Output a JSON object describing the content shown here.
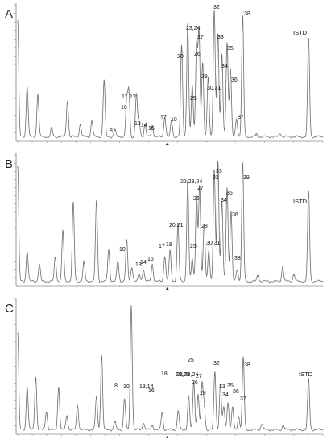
{
  "chart_data": [
    {
      "type": "line",
      "panel_label": "A",
      "internal_standard": "ISTD",
      "annotations": [
        {
          "label": "8",
          "x": 0.318
        },
        {
          "label": "10",
          "x": 0.357
        },
        {
          "label": "11",
          "x": 0.364
        },
        {
          "label": "12",
          "x": 0.389
        },
        {
          "label": "13",
          "x": 0.398
        },
        {
          "label": "14",
          "x": 0.417
        },
        {
          "label": "16",
          "x": 0.441
        },
        {
          "label": "17",
          "x": 0.482
        },
        {
          "label": "18",
          "x": 0.504
        },
        {
          "label": "20",
          "x": 0.537
        },
        {
          "label": "23,24",
          "x": 0.557
        },
        {
          "label": "25",
          "x": 0.572
        },
        {
          "label": "26",
          "x": 0.586
        },
        {
          "label": "27",
          "x": 0.594
        },
        {
          "label": "28",
          "x": 0.606
        },
        {
          "label": "30,31",
          "x": 0.624
        },
        {
          "label": "32",
          "x": 0.644
        },
        {
          "label": "33",
          "x": 0.656
        },
        {
          "label": "34",
          "x": 0.669
        },
        {
          "label": "35",
          "x": 0.686
        },
        {
          "label": "36",
          "x": 0.697
        },
        {
          "label": "37",
          "x": 0.717
        },
        {
          "label": "38",
          "x": 0.737
        },
        {
          "label": "ISTD",
          "x": 0.953
        }
      ],
      "peaks": [
        {
          "x": 0.0,
          "y": 0.92
        },
        {
          "x": 0.031,
          "y": 0.4
        },
        {
          "x": 0.066,
          "y": 0.34
        },
        {
          "x": 0.111,
          "y": 0.07
        },
        {
          "x": 0.163,
          "y": 0.29
        },
        {
          "x": 0.205,
          "y": 0.1
        },
        {
          "x": 0.243,
          "y": 0.13
        },
        {
          "x": 0.283,
          "y": 0.45
        },
        {
          "x": 0.318,
          "y": 0.06
        },
        {
          "x": 0.357,
          "y": 0.28
        },
        {
          "x": 0.364,
          "y": 0.36
        },
        {
          "x": 0.389,
          "y": 0.34
        },
        {
          "x": 0.398,
          "y": 0.12
        },
        {
          "x": 0.417,
          "y": 0.1
        },
        {
          "x": 0.441,
          "y": 0.09
        },
        {
          "x": 0.482,
          "y": 0.16
        },
        {
          "x": 0.504,
          "y": 0.13
        },
        {
          "x": 0.537,
          "y": 0.72
        },
        {
          "x": 0.557,
          "y": 0.9
        },
        {
          "x": 0.572,
          "y": 0.4
        },
        {
          "x": 0.586,
          "y": 0.73
        },
        {
          "x": 0.594,
          "y": 0.83
        },
        {
          "x": 0.606,
          "y": 0.58
        },
        {
          "x": 0.624,
          "y": 0.48
        },
        {
          "x": 0.644,
          "y": 1.0
        },
        {
          "x": 0.656,
          "y": 0.82
        },
        {
          "x": 0.669,
          "y": 0.65
        },
        {
          "x": 0.686,
          "y": 0.75
        },
        {
          "x": 0.697,
          "y": 0.54
        },
        {
          "x": 0.717,
          "y": 0.14
        },
        {
          "x": 0.737,
          "y": 0.96
        },
        {
          "x": 0.782,
          "y": 0.02
        },
        {
          "x": 0.86,
          "y": 0.03
        },
        {
          "x": 0.953,
          "y": 0.78
        }
      ]
    },
    {
      "type": "line",
      "panel_label": "B",
      "internal_standard": "ISTD",
      "annotations": [
        {
          "label": "10",
          "x": 0.357
        },
        {
          "label": "13",
          "x": 0.398
        },
        {
          "label": "14",
          "x": 0.412
        },
        {
          "label": "16",
          "x": 0.441
        },
        {
          "label": "17",
          "x": 0.482
        },
        {
          "label": "18",
          "x": 0.499
        },
        {
          "label": "20,21",
          "x": 0.525
        },
        {
          "label": "22,23,24",
          "x": 0.557
        },
        {
          "label": "25",
          "x": 0.572
        },
        {
          "label": "26",
          "x": 0.586
        },
        {
          "label": "27",
          "x": 0.596
        },
        {
          "label": "28",
          "x": 0.611
        },
        {
          "label": "30,31",
          "x": 0.626
        },
        {
          "label": "32",
          "x": 0.644
        },
        {
          "label": "33",
          "x": 0.656
        },
        {
          "label": "34",
          "x": 0.669
        },
        {
          "label": "35",
          "x": 0.686
        },
        {
          "label": "36",
          "x": 0.699
        },
        {
          "label": "38",
          "x": 0.719
        },
        {
          "label": "39",
          "x": 0.737
        },
        {
          "label": "ISTD",
          "x": 0.953
        }
      ],
      "peaks": [
        {
          "x": 0.0,
          "y": 0.95
        },
        {
          "x": 0.031,
          "y": 0.25
        },
        {
          "x": 0.071,
          "y": 0.14
        },
        {
          "x": 0.123,
          "y": 0.2
        },
        {
          "x": 0.148,
          "y": 0.42
        },
        {
          "x": 0.182,
          "y": 0.65
        },
        {
          "x": 0.217,
          "y": 0.16
        },
        {
          "x": 0.258,
          "y": 0.67
        },
        {
          "x": 0.298,
          "y": 0.26
        },
        {
          "x": 0.328,
          "y": 0.17
        },
        {
          "x": 0.357,
          "y": 0.34
        },
        {
          "x": 0.374,
          "y": 0.12
        },
        {
          "x": 0.398,
          "y": 0.06
        },
        {
          "x": 0.412,
          "y": 0.1
        },
        {
          "x": 0.441,
          "y": 0.14
        },
        {
          "x": 0.482,
          "y": 0.21
        },
        {
          "x": 0.499,
          "y": 0.25
        },
        {
          "x": 0.525,
          "y": 0.47
        },
        {
          "x": 0.557,
          "y": 0.84
        },
        {
          "x": 0.572,
          "y": 0.18
        },
        {
          "x": 0.586,
          "y": 0.72
        },
        {
          "x": 0.596,
          "y": 0.79
        },
        {
          "x": 0.611,
          "y": 0.48
        },
        {
          "x": 0.626,
          "y": 0.26
        },
        {
          "x": 0.644,
          "y": 0.93
        },
        {
          "x": 0.656,
          "y": 1.0
        },
        {
          "x": 0.669,
          "y": 0.66
        },
        {
          "x": 0.686,
          "y": 0.78
        },
        {
          "x": 0.699,
          "y": 0.58
        },
        {
          "x": 0.719,
          "y": 0.1
        },
        {
          "x": 0.737,
          "y": 0.98
        },
        {
          "x": 0.787,
          "y": 0.05
        },
        {
          "x": 0.868,
          "y": 0.12
        },
        {
          "x": 0.905,
          "y": 0.06
        },
        {
          "x": 0.953,
          "y": 0.75
        }
      ]
    },
    {
      "type": "line",
      "panel_label": "C",
      "internal_standard": "ISTD",
      "annotations": [
        {
          "label": "8",
          "x": 0.318
        },
        {
          "label": "10",
          "x": 0.35
        },
        {
          "label": "13,14",
          "x": 0.412
        },
        {
          "label": "16",
          "x": 0.441
        },
        {
          "label": "18",
          "x": 0.473
        },
        {
          "label": "19,20",
          "x": 0.526
        },
        {
          "label": "22,23,24",
          "x": 0.56
        },
        {
          "label": "25",
          "x": 0.577
        },
        {
          "label": "26",
          "x": 0.591
        },
        {
          "label": "27",
          "x": 0.604
        },
        {
          "label": "28",
          "x": 0.611
        },
        {
          "label": "32",
          "x": 0.646
        },
        {
          "label": "33",
          "x": 0.664
        },
        {
          "label": "34",
          "x": 0.675
        },
        {
          "label": "35",
          "x": 0.689
        },
        {
          "label": "36",
          "x": 0.704
        },
        {
          "label": "37",
          "x": 0.724
        },
        {
          "label": "38",
          "x": 0.739
        },
        {
          "label": "ISTD",
          "x": 0.953
        }
      ],
      "peaks": [
        {
          "x": 0.0,
          "y": 0.78
        },
        {
          "x": 0.031,
          "y": 0.35
        },
        {
          "x": 0.059,
          "y": 0.43
        },
        {
          "x": 0.094,
          "y": 0.15
        },
        {
          "x": 0.134,
          "y": 0.34
        },
        {
          "x": 0.161,
          "y": 0.12
        },
        {
          "x": 0.196,
          "y": 0.2
        },
        {
          "x": 0.258,
          "y": 0.27
        },
        {
          "x": 0.275,
          "y": 0.6
        },
        {
          "x": 0.318,
          "y": 0.07
        },
        {
          "x": 0.35,
          "y": 0.25
        },
        {
          "x": 0.372,
          "y": 1.0
        },
        {
          "x": 0.412,
          "y": 0.06
        },
        {
          "x": 0.441,
          "y": 0.04
        },
        {
          "x": 0.473,
          "y": 0.14
        },
        {
          "x": 0.526,
          "y": 0.15
        },
        {
          "x": 0.56,
          "y": 0.27
        },
        {
          "x": 0.577,
          "y": 0.39
        },
        {
          "x": 0.591,
          "y": 0.29
        },
        {
          "x": 0.604,
          "y": 0.36
        },
        {
          "x": 0.611,
          "y": 0.2
        },
        {
          "x": 0.646,
          "y": 0.47
        },
        {
          "x": 0.664,
          "y": 0.36
        },
        {
          "x": 0.675,
          "y": 0.18
        },
        {
          "x": 0.689,
          "y": 0.22
        },
        {
          "x": 0.704,
          "y": 0.18
        },
        {
          "x": 0.724,
          "y": 0.11
        },
        {
          "x": 0.739,
          "y": 0.58
        },
        {
          "x": 0.8,
          "y": 0.05
        },
        {
          "x": 0.87,
          "y": 0.04
        },
        {
          "x": 0.953,
          "y": 0.41
        }
      ]
    }
  ]
}
